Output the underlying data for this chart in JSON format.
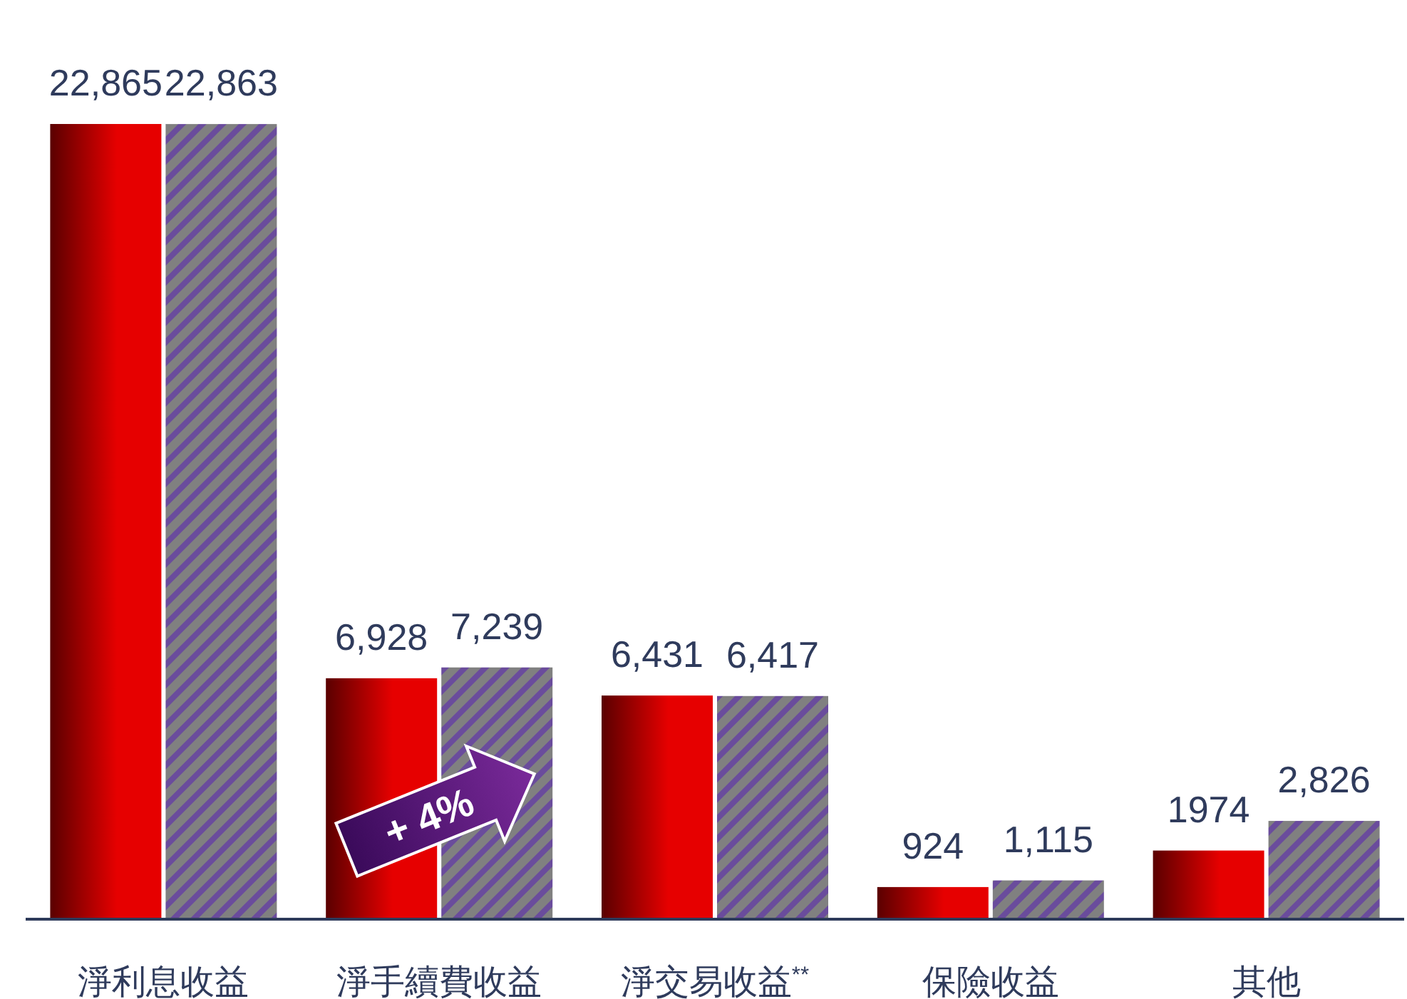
{
  "chart_data": {
    "type": "bar",
    "categories": [
      "淨利息收益",
      "淨手續費收益",
      "淨交易收益$^{**}$",
      "保險收益",
      "其他"
    ],
    "series": [
      {
        "color": "#e60000",
        "values": [
          22865,
          6928,
          6431,
          924,
          1974
        ],
        "value_labels": [
          "22,865",
          "6,928",
          "6,431",
          "924",
          "1974"
        ]
      },
      {
        "color": "#808080",
        "values": [
          22863,
          7239,
          6417,
          1115,
          2826
        ],
        "value_labels": [
          "22,863",
          "7,239",
          "6,417",
          "1,115",
          "2,826"
        ]
      }
    ],
    "annotations": [
      {
        "text": "+ 4%",
        "x": "淨手續費收益"
      }
    ]
  }
}
